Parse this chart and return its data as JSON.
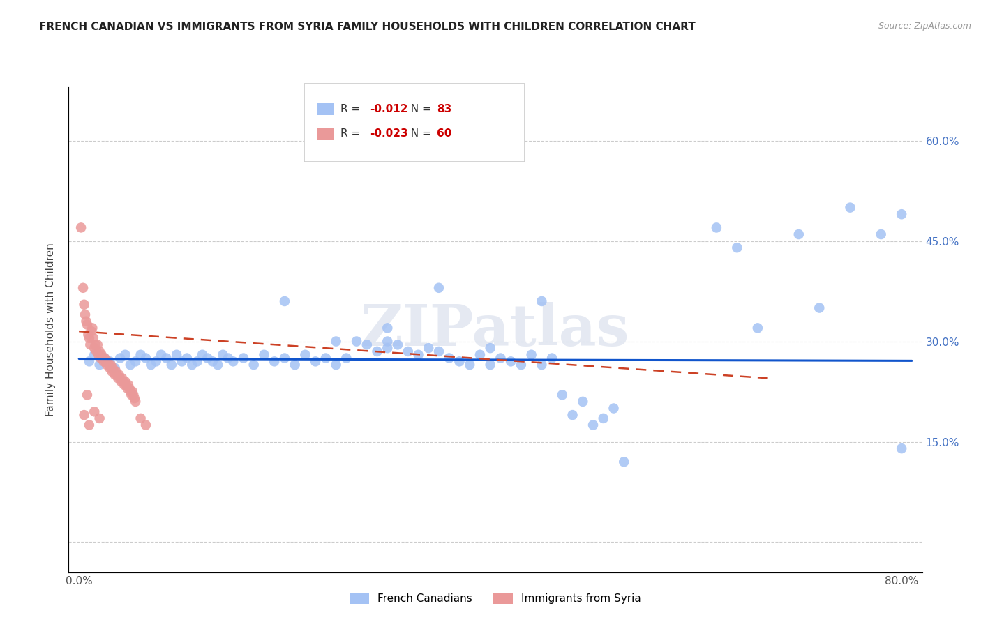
{
  "title": "FRENCH CANADIAN VS IMMIGRANTS FROM SYRIA FAMILY HOUSEHOLDS WITH CHILDREN CORRELATION CHART",
  "source": "Source: ZipAtlas.com",
  "ylabel": "Family Households with Children",
  "r1": -0.012,
  "n1": 83,
  "r2": -0.023,
  "n2": 60,
  "blue_color": "#a4c2f4",
  "pink_color": "#ea9999",
  "trend_blue_color": "#1155cc",
  "trend_pink_color": "#cc4125",
  "right_axis_color": "#4472c4",
  "watermark": "ZIPatlas",
  "legend1_label": "French Canadians",
  "legend2_label": "Immigrants from Syria",
  "blue_scatter_x": [
    0.01,
    0.015,
    0.02,
    0.025,
    0.03,
    0.035,
    0.04,
    0.045,
    0.05,
    0.055,
    0.06,
    0.065,
    0.07,
    0.075,
    0.08,
    0.085,
    0.09,
    0.095,
    0.1,
    0.105,
    0.11,
    0.115,
    0.12,
    0.125,
    0.13,
    0.135,
    0.14,
    0.145,
    0.15,
    0.16,
    0.17,
    0.18,
    0.19,
    0.2,
    0.21,
    0.22,
    0.23,
    0.24,
    0.25,
    0.26,
    0.27,
    0.28,
    0.29,
    0.3,
    0.31,
    0.32,
    0.33,
    0.34,
    0.35,
    0.36,
    0.37,
    0.38,
    0.39,
    0.4,
    0.41,
    0.42,
    0.43,
    0.44,
    0.45,
    0.46,
    0.47,
    0.48,
    0.49,
    0.5,
    0.51,
    0.52,
    0.3,
    0.35,
    0.4,
    0.45,
    0.2,
    0.25,
    0.3,
    0.62,
    0.66,
    0.72,
    0.75,
    0.78,
    0.64,
    0.7,
    0.8,
    0.8,
    0.53
  ],
  "blue_scatter_y": [
    0.27,
    0.28,
    0.265,
    0.275,
    0.27,
    0.26,
    0.275,
    0.28,
    0.265,
    0.27,
    0.28,
    0.275,
    0.265,
    0.27,
    0.28,
    0.275,
    0.265,
    0.28,
    0.27,
    0.275,
    0.265,
    0.27,
    0.28,
    0.275,
    0.27,
    0.265,
    0.28,
    0.275,
    0.27,
    0.275,
    0.265,
    0.28,
    0.27,
    0.275,
    0.265,
    0.28,
    0.27,
    0.275,
    0.265,
    0.275,
    0.3,
    0.295,
    0.285,
    0.29,
    0.295,
    0.285,
    0.28,
    0.29,
    0.285,
    0.275,
    0.27,
    0.265,
    0.28,
    0.265,
    0.275,
    0.27,
    0.265,
    0.28,
    0.265,
    0.275,
    0.22,
    0.19,
    0.21,
    0.175,
    0.185,
    0.2,
    0.32,
    0.38,
    0.29,
    0.36,
    0.36,
    0.3,
    0.3,
    0.47,
    0.32,
    0.35,
    0.5,
    0.46,
    0.44,
    0.46,
    0.49,
    0.14,
    0.12
  ],
  "pink_scatter_x": [
    0.002,
    0.004,
    0.005,
    0.006,
    0.007,
    0.008,
    0.009,
    0.01,
    0.011,
    0.012,
    0.013,
    0.014,
    0.015,
    0.016,
    0.017,
    0.018,
    0.019,
    0.02,
    0.021,
    0.022,
    0.023,
    0.024,
    0.025,
    0.026,
    0.027,
    0.028,
    0.029,
    0.03,
    0.031,
    0.032,
    0.033,
    0.034,
    0.035,
    0.036,
    0.037,
    0.038,
    0.039,
    0.04,
    0.041,
    0.042,
    0.043,
    0.044,
    0.045,
    0.046,
    0.047,
    0.048,
    0.049,
    0.05,
    0.051,
    0.052,
    0.053,
    0.054,
    0.055,
    0.06,
    0.065,
    0.015,
    0.01,
    0.02,
    0.005,
    0.008
  ],
  "pink_scatter_y": [
    0.47,
    0.38,
    0.355,
    0.34,
    0.33,
    0.325,
    0.31,
    0.305,
    0.295,
    0.315,
    0.32,
    0.305,
    0.29,
    0.295,
    0.285,
    0.295,
    0.28,
    0.285,
    0.275,
    0.28,
    0.275,
    0.27,
    0.275,
    0.27,
    0.265,
    0.27,
    0.265,
    0.26,
    0.265,
    0.255,
    0.26,
    0.255,
    0.25,
    0.255,
    0.25,
    0.245,
    0.25,
    0.245,
    0.24,
    0.245,
    0.24,
    0.235,
    0.24,
    0.235,
    0.23,
    0.235,
    0.23,
    0.225,
    0.22,
    0.225,
    0.22,
    0.215,
    0.21,
    0.185,
    0.175,
    0.195,
    0.175,
    0.185,
    0.19,
    0.22
  ],
  "xlim": [
    -0.01,
    0.82
  ],
  "ylim": [
    -0.045,
    0.68
  ],
  "x_ticks": [
    0.0,
    0.1,
    0.2,
    0.3,
    0.4,
    0.5,
    0.6,
    0.7,
    0.8
  ],
  "x_tick_labels": [
    "0.0%",
    "",
    "",
    "",
    "",
    "",
    "",
    "",
    "80.0%"
  ],
  "y_ticks": [
    0.0,
    0.15,
    0.3,
    0.45,
    0.6
  ],
  "y_tick_labels_right": [
    "",
    "15.0%",
    "30.0%",
    "45.0%",
    "60.0%"
  ],
  "blue_trend_x": [
    0.0,
    0.81
  ],
  "blue_trend_y": [
    0.274,
    0.271
  ],
  "pink_trend_x": [
    0.0,
    0.67
  ],
  "pink_trend_y": [
    0.315,
    0.245
  ]
}
